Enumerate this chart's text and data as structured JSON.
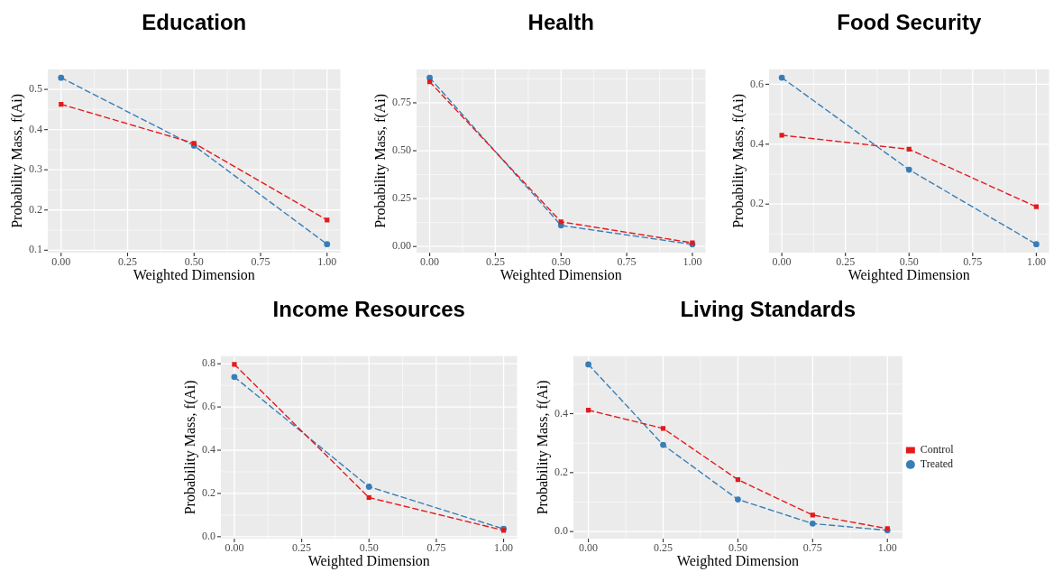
{
  "chart_data": [
    {
      "type": "line",
      "title": "Education",
      "xlabel": "Weighted Dimension",
      "ylabel": "Probability Mass, f(Ai)",
      "x": [
        0,
        0.5,
        1
      ],
      "xlim": [
        -0.05,
        1.05
      ],
      "xticks": [
        {
          "value": 0,
          "label": "0.00"
        },
        {
          "value": 0.25,
          "label": "0.25"
        },
        {
          "value": 0.5,
          "label": "0.50"
        },
        {
          "value": 0.75,
          "label": "0.75"
        },
        {
          "value": 1,
          "label": "1.00"
        }
      ],
      "ylim": [
        0.094,
        0.55
      ],
      "yticks": [
        0.1,
        0.2,
        0.3,
        0.4,
        0.5
      ],
      "grid": true,
      "legend": false,
      "line_style": "dashed",
      "series": [
        {
          "color": "#e41a1c",
          "marker": "square",
          "values": [
            0.463,
            0.366,
            0.175
          ]
        },
        {
          "color": "#377eb8",
          "marker": "circle",
          "values": [
            0.529,
            0.36,
            0.115
          ]
        }
      ]
    },
    {
      "type": "line",
      "title": "Health",
      "xlabel": "Weighted Dimension",
      "ylabel": "Probability Mass, f(Ai)",
      "x": [
        0,
        0.5,
        1
      ],
      "xlim": [
        -0.05,
        1.05
      ],
      "xticks": [
        {
          "value": 0,
          "label": "0.00"
        },
        {
          "value": 0.25,
          "label": "0.25"
        },
        {
          "value": 0.5,
          "label": "0.50"
        },
        {
          "value": 0.75,
          "label": "0.75"
        },
        {
          "value": 1,
          "label": "1.00"
        }
      ],
      "ylim": [
        -0.032,
        0.925
      ],
      "yticks": [
        {
          "value": 0,
          "label": "0.00"
        },
        {
          "value": 0.25,
          "label": "0.25"
        },
        {
          "value": 0.5,
          "label": "0.50"
        },
        {
          "value": 0.75,
          "label": "0.75"
        }
      ],
      "grid": true,
      "legend": false,
      "line_style": "dashed",
      "series": [
        {
          "color": "#e41a1c",
          "marker": "square",
          "values": [
            0.86,
            0.129,
            0.019
          ]
        },
        {
          "color": "#377eb8",
          "marker": "circle",
          "values": [
            0.881,
            0.11,
            0.011
          ]
        }
      ]
    },
    {
      "type": "line",
      "title": "Food Security",
      "xlabel": "Weighted Dimension",
      "ylabel": "Probability Mass, f(Ai)",
      "x": [
        0,
        0.5,
        1
      ],
      "xlim": [
        -0.05,
        1.05
      ],
      "xticks": [
        {
          "value": 0,
          "label": "0.00"
        },
        {
          "value": 0.25,
          "label": "0.25"
        },
        {
          "value": 0.5,
          "label": "0.50"
        },
        {
          "value": 0.75,
          "label": "0.75"
        },
        {
          "value": 1,
          "label": "1.00"
        }
      ],
      "ylim": [
        0.038,
        0.65
      ],
      "yticks": [
        0.2,
        0.4,
        0.6
      ],
      "grid": true,
      "legend": false,
      "line_style": "dashed",
      "series": [
        {
          "color": "#e41a1c",
          "marker": "square",
          "values": [
            0.43,
            0.383,
            0.191
          ]
        },
        {
          "color": "#377eb8",
          "marker": "circle",
          "values": [
            0.622,
            0.315,
            0.066
          ]
        }
      ]
    },
    {
      "type": "line",
      "title": "Income Resources",
      "xlabel": "Weighted Dimension",
      "ylabel": "Probability Mass, f(Ai)",
      "x": [
        0,
        0.5,
        1
      ],
      "xlim": [
        -0.05,
        1.05
      ],
      "xticks": [
        {
          "value": 0,
          "label": "0.00"
        },
        {
          "value": 0.25,
          "label": "0.25"
        },
        {
          "value": 0.5,
          "label": "0.50"
        },
        {
          "value": 0.75,
          "label": "0.75"
        },
        {
          "value": 1,
          "label": "1.00"
        }
      ],
      "ylim": [
        -0.009,
        0.835
      ],
      "yticks": [
        {
          "value": 0,
          "label": "0.0"
        },
        {
          "value": 0.2,
          "label": "0.2"
        },
        {
          "value": 0.4,
          "label": "0.4"
        },
        {
          "value": 0.6,
          "label": "0.6"
        },
        {
          "value": 0.8,
          "label": "0.8"
        }
      ],
      "grid": true,
      "legend": false,
      "line_style": "dashed",
      "series": [
        {
          "color": "#e41a1c",
          "marker": "square",
          "values": [
            0.797,
            0.181,
            0.029
          ]
        },
        {
          "color": "#377eb8",
          "marker": "circle",
          "values": [
            0.739,
            0.231,
            0.036
          ]
        }
      ]
    },
    {
      "type": "line",
      "title": "Living Standards",
      "xlabel": "Weighted Dimension",
      "ylabel": "Probability Mass, f(Ai)",
      "x": [
        0,
        0.25,
        0.5,
        0.75,
        1
      ],
      "xlim": [
        -0.05,
        1.05
      ],
      "xticks": [
        {
          "value": 0,
          "label": "0.00"
        },
        {
          "value": 0.25,
          "label": "0.25"
        },
        {
          "value": 0.5,
          "label": "0.50"
        },
        {
          "value": 0.75,
          "label": "0.75"
        },
        {
          "value": 1,
          "label": "1.00"
        }
      ],
      "ylim": [
        -0.024,
        0.595
      ],
      "yticks": [
        {
          "value": 0,
          "label": "0.0"
        },
        {
          "value": 0.2,
          "label": "0.2"
        },
        {
          "value": 0.4,
          "label": "0.4"
        }
      ],
      "grid": true,
      "legend": "right",
      "line_style": "dashed",
      "series": [
        {
          "name": "Control",
          "color": "#e41a1c",
          "marker": "square",
          "values": [
            0.412,
            0.35,
            0.176,
            0.056,
            0.01
          ]
        },
        {
          "name": "Treated",
          "color": "#377eb8",
          "marker": "circle",
          "values": [
            0.567,
            0.294,
            0.109,
            0.027,
            0.004
          ]
        }
      ]
    }
  ]
}
